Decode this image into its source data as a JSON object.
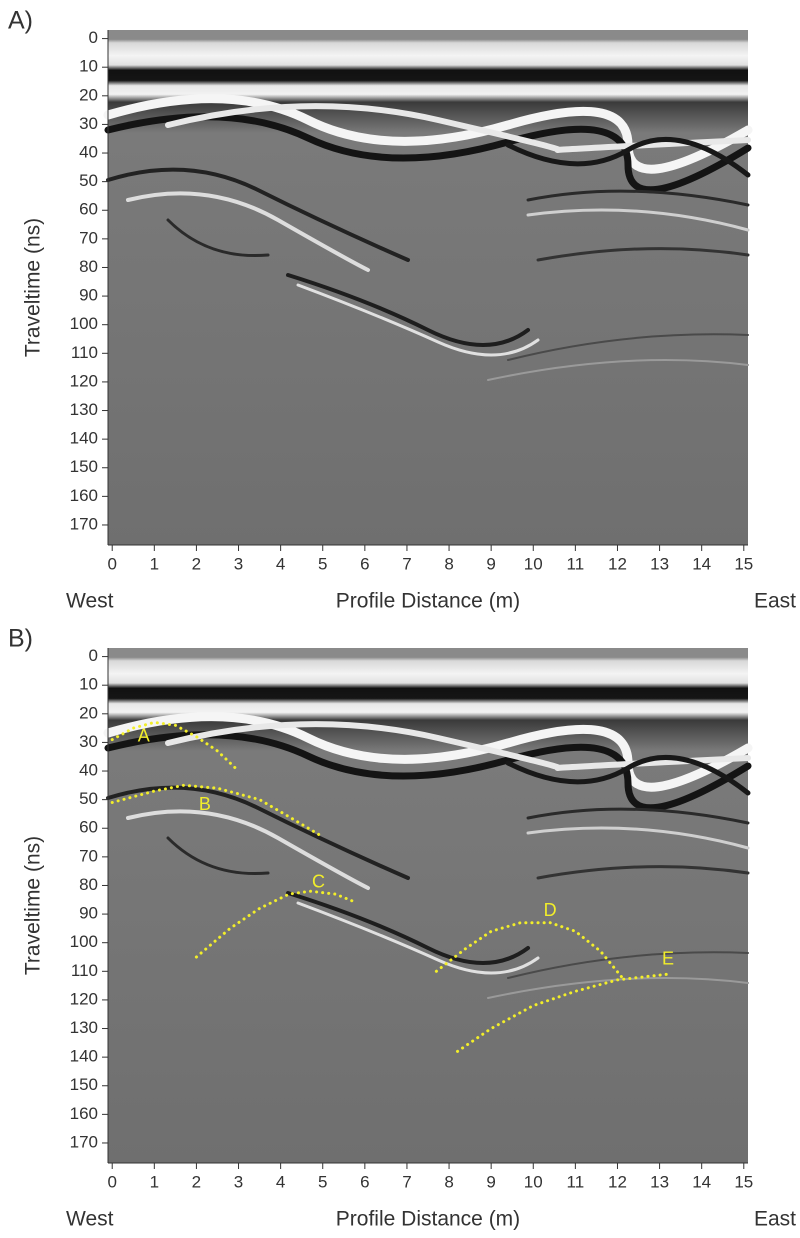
{
  "chart_data": [
    {
      "type": "radargram",
      "panel_label": "A)",
      "xlabel": "Profile Distance (m)",
      "ylabel": "Traveltime (ns)",
      "left_label": "West",
      "right_label": "East",
      "xlim": [
        -0.1,
        15.1
      ],
      "xticks": [
        0,
        1,
        2,
        3,
        4,
        5,
        6,
        7,
        8,
        9,
        10,
        11,
        12,
        13,
        14,
        15
      ],
      "ylim": [
        -3,
        177
      ],
      "yticks": [
        0,
        10,
        20,
        30,
        40,
        50,
        60,
        70,
        80,
        90,
        100,
        110,
        120,
        130,
        140,
        150,
        160,
        170
      ],
      "annotations": []
    },
    {
      "type": "radargram",
      "panel_label": "B)",
      "xlabel": "Profile Distance (m)",
      "ylabel": "Traveltime (ns)",
      "left_label": "West",
      "right_label": "East",
      "xlim": [
        -0.1,
        15.1
      ],
      "xticks": [
        0,
        1,
        2,
        3,
        4,
        5,
        6,
        7,
        8,
        9,
        10,
        11,
        12,
        13,
        14,
        15
      ],
      "ylim": [
        -3,
        177
      ],
      "yticks": [
        0,
        10,
        20,
        30,
        40,
        50,
        60,
        70,
        80,
        90,
        100,
        110,
        120,
        130,
        140,
        150,
        160,
        170
      ],
      "annotation_color": "#f2ee2a",
      "annotations": [
        {
          "text": "A",
          "label_x": 0.75,
          "label_y": 28,
          "x": [
            0,
            0.5,
            1,
            1.5,
            2,
            2.5,
            3
          ],
          "y": [
            29,
            25,
            23,
            24,
            28,
            33,
            40
          ]
        },
        {
          "text": "B",
          "label_x": 2.2,
          "label_y": 52,
          "x": [
            0,
            1,
            1.7,
            2.5,
            3.5,
            4.2,
            5
          ],
          "y": [
            51,
            47,
            45,
            46,
            50,
            56,
            63
          ]
        },
        {
          "text": "C",
          "label_x": 4.9,
          "label_y": 79,
          "x": [
            2,
            2.8,
            3.5,
            4.2,
            4.7,
            5.3,
            5.8
          ],
          "y": [
            105,
            95,
            88,
            83,
            82,
            83,
            86
          ]
        },
        {
          "text": "D",
          "label_x": 10.4,
          "label_y": 89,
          "x": [
            7.7,
            8.4,
            9,
            9.7,
            10.4,
            11,
            11.6,
            12.1
          ],
          "y": [
            110,
            102,
            96,
            93,
            93,
            96,
            103,
            112
          ]
        },
        {
          "text": "E",
          "label_x": 13.2,
          "label_y": 106,
          "x": [
            8.2,
            9,
            10,
            11,
            12,
            12.6,
            13.2
          ],
          "y": [
            138,
            130,
            122,
            117,
            113,
            112,
            111
          ]
        }
      ]
    }
  ]
}
